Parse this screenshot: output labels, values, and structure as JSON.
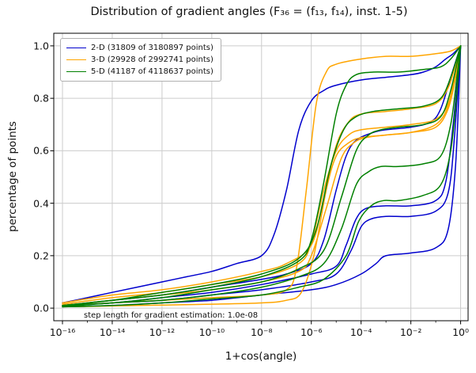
{
  "title": "Distribution of gradient angles (F₃₆ = (f₁₃, f₁₄), inst. 1-5)",
  "annotation": "step length for gradient estimation: 1.0e-08",
  "axes": {
    "xlabel": "1+cos(angle)",
    "ylabel": "percentage of points",
    "xlim_log10": [
      -16.35,
      0.3
    ],
    "ylim": [
      -0.048,
      1.048
    ],
    "x_ticks": [
      {
        "v": -16,
        "label": "10⁻¹⁶"
      },
      {
        "v": -14,
        "label": "10⁻¹⁴"
      },
      {
        "v": -12,
        "label": "10⁻¹²"
      },
      {
        "v": -10,
        "label": "10⁻¹⁰"
      },
      {
        "v": -8,
        "label": "10⁻⁸"
      },
      {
        "v": -6,
        "label": "10⁻⁶"
      },
      {
        "v": -4,
        "label": "10⁻⁴"
      },
      {
        "v": -2,
        "label": "10⁻²"
      },
      {
        "v": 0,
        "label": "10⁰"
      }
    ],
    "x_minor_ticks": [
      -15,
      -13,
      -11,
      -9,
      -7,
      -5,
      -3,
      -1
    ],
    "y_ticks": [
      {
        "v": 0.0,
        "label": "0.0"
      },
      {
        "v": 0.2,
        "label": "0.2"
      },
      {
        "v": 0.4,
        "label": "0.4"
      },
      {
        "v": 0.6,
        "label": "0.6"
      },
      {
        "v": 0.8,
        "label": "0.8"
      },
      {
        "v": 1.0,
        "label": "1.0"
      }
    ],
    "grid_color": "#cccccc",
    "spine_color": "#000000"
  },
  "chart_data": {
    "type": "line",
    "title": "Distribution of gradient angles (F₃₆ = (f₁₃, f₁₄), inst. 1-5)",
    "xlabel": "1+cos(angle)",
    "ylabel": "percentage of points",
    "x_scale": "log10",
    "xlim": [
      1e-16,
      1
    ],
    "ylim": [
      0,
      1
    ],
    "legend_position": "upper left",
    "grid": true,
    "x_format": "points are [log10(1+cos(angle)), fraction]",
    "series": [
      {
        "name": "2-D (31809 of 3180897 points)",
        "color": "#0000cd",
        "curves": [
          [
            [
              -16,
              0.02
            ],
            [
              -15,
              0.04
            ],
            [
              -14,
              0.06
            ],
            [
              -13,
              0.08
            ],
            [
              -12,
              0.1
            ],
            [
              -11,
              0.12
            ],
            [
              -10,
              0.14
            ],
            [
              -9,
              0.17
            ],
            [
              -8,
              0.2
            ],
            [
              -7.5,
              0.28
            ],
            [
              -7,
              0.45
            ],
            [
              -6.5,
              0.68
            ],
            [
              -6,
              0.79
            ],
            [
              -5.5,
              0.83
            ],
            [
              -5,
              0.85
            ],
            [
              -4,
              0.87
            ],
            [
              -3,
              0.88
            ],
            [
              -2,
              0.89
            ],
            [
              -1.5,
              0.9
            ],
            [
              -1,
              0.92
            ],
            [
              -0.6,
              0.95
            ],
            [
              -0.3,
              0.97
            ],
            [
              0,
              1.0
            ]
          ],
          [
            [
              -16,
              0.01
            ],
            [
              -14,
              0.03
            ],
            [
              -12,
              0.05
            ],
            [
              -10,
              0.08
            ],
            [
              -8,
              0.11
            ],
            [
              -7,
              0.13
            ],
            [
              -6,
              0.17
            ],
            [
              -5.5,
              0.26
            ],
            [
              -5,
              0.45
            ],
            [
              -4.6,
              0.58
            ],
            [
              -4.2,
              0.64
            ],
            [
              -3.5,
              0.67
            ],
            [
              -3,
              0.68
            ],
            [
              -2,
              0.69
            ],
            [
              -1.2,
              0.71
            ],
            [
              -0.8,
              0.76
            ],
            [
              -0.4,
              0.88
            ],
            [
              0,
              1.0
            ]
          ],
          [
            [
              -16,
              0.01
            ],
            [
              -14,
              0.02
            ],
            [
              -12,
              0.04
            ],
            [
              -10,
              0.06
            ],
            [
              -8,
              0.09
            ],
            [
              -6,
              0.13
            ],
            [
              -5,
              0.16
            ],
            [
              -4.6,
              0.24
            ],
            [
              -4.2,
              0.34
            ],
            [
              -3.8,
              0.38
            ],
            [
              -3,
              0.39
            ],
            [
              -2,
              0.39
            ],
            [
              -1,
              0.41
            ],
            [
              -0.6,
              0.48
            ],
            [
              -0.3,
              0.7
            ],
            [
              0,
              1.0
            ]
          ],
          [
            [
              -16,
              0.01
            ],
            [
              -14,
              0.02
            ],
            [
              -12,
              0.03
            ],
            [
              -10,
              0.05
            ],
            [
              -8,
              0.07
            ],
            [
              -6,
              0.1
            ],
            [
              -5,
              0.13
            ],
            [
              -4.4,
              0.22
            ],
            [
              -4,
              0.31
            ],
            [
              -3.6,
              0.34
            ],
            [
              -3,
              0.35
            ],
            [
              -2,
              0.35
            ],
            [
              -1,
              0.37
            ],
            [
              -0.5,
              0.44
            ],
            [
              -0.25,
              0.65
            ],
            [
              0,
              1.0
            ]
          ],
          [
            [
              -16,
              0.005
            ],
            [
              -14,
              0.01
            ],
            [
              -12,
              0.02
            ],
            [
              -10,
              0.03
            ],
            [
              -8,
              0.05
            ],
            [
              -6,
              0.07
            ],
            [
              -5,
              0.09
            ],
            [
              -4,
              0.13
            ],
            [
              -3.4,
              0.17
            ],
            [
              -3,
              0.2
            ],
            [
              -2,
              0.21
            ],
            [
              -1,
              0.23
            ],
            [
              -0.5,
              0.3
            ],
            [
              -0.2,
              0.55
            ],
            [
              0,
              1.0
            ]
          ]
        ]
      },
      {
        "name": "3-D (29928 of 2992741 points)",
        "color": "#ffa500",
        "curves": [
          [
            [
              -16,
              0.01
            ],
            [
              -14,
              0.02
            ],
            [
              -12,
              0.03
            ],
            [
              -10,
              0.04
            ],
            [
              -8,
              0.05
            ],
            [
              -7,
              0.07
            ],
            [
              -6.6,
              0.15
            ],
            [
              -6.2,
              0.45
            ],
            [
              -5.8,
              0.78
            ],
            [
              -5.4,
              0.9
            ],
            [
              -5,
              0.93
            ],
            [
              -4,
              0.95
            ],
            [
              -3,
              0.96
            ],
            [
              -2,
              0.96
            ],
            [
              -1,
              0.97
            ],
            [
              -0.4,
              0.98
            ],
            [
              0,
              1.0
            ]
          ],
          [
            [
              -16,
              0.02
            ],
            [
              -14,
              0.05
            ],
            [
              -12,
              0.07
            ],
            [
              -10,
              0.1
            ],
            [
              -8,
              0.14
            ],
            [
              -7,
              0.17
            ],
            [
              -6,
              0.24
            ],
            [
              -5.5,
              0.42
            ],
            [
              -5,
              0.62
            ],
            [
              -4.5,
              0.71
            ],
            [
              -4,
              0.74
            ],
            [
              -3,
              0.75
            ],
            [
              -2,
              0.76
            ],
            [
              -1,
              0.78
            ],
            [
              -0.5,
              0.84
            ],
            [
              -0.2,
              0.93
            ],
            [
              0,
              1.0
            ]
          ],
          [
            [
              -16,
              0.015
            ],
            [
              -14,
              0.04
            ],
            [
              -12,
              0.06
            ],
            [
              -10,
              0.09
            ],
            [
              -8,
              0.12
            ],
            [
              -6.5,
              0.17
            ],
            [
              -6,
              0.25
            ],
            [
              -5.5,
              0.45
            ],
            [
              -5,
              0.6
            ],
            [
              -4.5,
              0.66
            ],
            [
              -4,
              0.68
            ],
            [
              -3,
              0.69
            ],
            [
              -2,
              0.7
            ],
            [
              -1,
              0.72
            ],
            [
              -0.5,
              0.78
            ],
            [
              -0.2,
              0.9
            ],
            [
              0,
              1.0
            ]
          ],
          [
            [
              -16,
              0.01
            ],
            [
              -14,
              0.03
            ],
            [
              -12,
              0.05
            ],
            [
              -10,
              0.07
            ],
            [
              -8,
              0.1
            ],
            [
              -6.5,
              0.14
            ],
            [
              -6,
              0.2
            ],
            [
              -5.4,
              0.38
            ],
            [
              -4.8,
              0.57
            ],
            [
              -4.3,
              0.63
            ],
            [
              -3.8,
              0.65
            ],
            [
              -3,
              0.66
            ],
            [
              -2,
              0.67
            ],
            [
              -1,
              0.69
            ],
            [
              -0.5,
              0.76
            ],
            [
              -0.2,
              0.88
            ],
            [
              0,
              1.0
            ]
          ],
          [
            [
              -16,
              0.005
            ],
            [
              -13,
              0.01
            ],
            [
              -10,
              0.015
            ],
            [
              -8,
              0.02
            ],
            [
              -7,
              0.03
            ],
            [
              -6.4,
              0.06
            ],
            [
              -5.9,
              0.2
            ],
            [
              -5.4,
              0.45
            ],
            [
              -5,
              0.58
            ],
            [
              -4.5,
              0.63
            ],
            [
              -4,
              0.65
            ],
            [
              -3,
              0.66
            ],
            [
              -2,
              0.67
            ],
            [
              -1,
              0.7
            ],
            [
              -0.5,
              0.77
            ],
            [
              -0.2,
              0.89
            ],
            [
              0,
              1.0
            ]
          ]
        ]
      },
      {
        "name": "5-D (41187 of 4118637 points)",
        "color": "#008000",
        "curves": [
          [
            [
              -16,
              0.01
            ],
            [
              -14,
              0.03
            ],
            [
              -12,
              0.05
            ],
            [
              -10,
              0.08
            ],
            [
              -8,
              0.12
            ],
            [
              -6.5,
              0.18
            ],
            [
              -6,
              0.26
            ],
            [
              -5.5,
              0.48
            ],
            [
              -5,
              0.74
            ],
            [
              -4.6,
              0.85
            ],
            [
              -4.2,
              0.89
            ],
            [
              -3.5,
              0.9
            ],
            [
              -2.5,
              0.9
            ],
            [
              -1.5,
              0.91
            ],
            [
              -0.8,
              0.92
            ],
            [
              -0.4,
              0.95
            ],
            [
              0,
              1.0
            ]
          ],
          [
            [
              -16,
              0.01
            ],
            [
              -14,
              0.03
            ],
            [
              -12,
              0.06
            ],
            [
              -10,
              0.09
            ],
            [
              -8,
              0.13
            ],
            [
              -6.5,
              0.19
            ],
            [
              -5.8,
              0.3
            ],
            [
              -5.2,
              0.55
            ],
            [
              -4.7,
              0.68
            ],
            [
              -4.2,
              0.73
            ],
            [
              -3.5,
              0.75
            ],
            [
              -2.5,
              0.76
            ],
            [
              -1.5,
              0.77
            ],
            [
              -0.8,
              0.8
            ],
            [
              -0.4,
              0.88
            ],
            [
              0,
              1.0
            ]
          ],
          [
            [
              -16,
              0.01
            ],
            [
              -14,
              0.02
            ],
            [
              -12,
              0.04
            ],
            [
              -10,
              0.07
            ],
            [
              -8,
              0.1
            ],
            [
              -6.5,
              0.15
            ],
            [
              -5.5,
              0.22
            ],
            [
              -4.8,
              0.42
            ],
            [
              -4.2,
              0.6
            ],
            [
              -3.7,
              0.66
            ],
            [
              -3.2,
              0.68
            ],
            [
              -2.5,
              0.69
            ],
            [
              -1.5,
              0.7
            ],
            [
              -0.8,
              0.73
            ],
            [
              -0.4,
              0.83
            ],
            [
              0,
              1.0
            ]
          ],
          [
            [
              -16,
              0.005
            ],
            [
              -14,
              0.02
            ],
            [
              -12,
              0.03
            ],
            [
              -10,
              0.05
            ],
            [
              -8,
              0.08
            ],
            [
              -6.5,
              0.12
            ],
            [
              -5.5,
              0.17
            ],
            [
              -4.8,
              0.3
            ],
            [
              -4.2,
              0.47
            ],
            [
              -3.7,
              0.52
            ],
            [
              -3.2,
              0.54
            ],
            [
              -2.5,
              0.54
            ],
            [
              -1.5,
              0.55
            ],
            [
              -0.8,
              0.58
            ],
            [
              -0.4,
              0.7
            ],
            [
              -0.15,
              0.88
            ],
            [
              0,
              1.0
            ]
          ],
          [
            [
              -16,
              0.005
            ],
            [
              -14,
              0.01
            ],
            [
              -12,
              0.02
            ],
            [
              -10,
              0.035
            ],
            [
              -8,
              0.05
            ],
            [
              -6.5,
              0.08
            ],
            [
              -5.5,
              0.11
            ],
            [
              -4.6,
              0.2
            ],
            [
              -4.1,
              0.33
            ],
            [
              -3.6,
              0.39
            ],
            [
              -3.1,
              0.41
            ],
            [
              -2.5,
              0.41
            ],
            [
              -1.5,
              0.43
            ],
            [
              -0.8,
              0.47
            ],
            [
              -0.4,
              0.6
            ],
            [
              -0.15,
              0.82
            ],
            [
              0,
              1.0
            ]
          ]
        ]
      }
    ]
  }
}
